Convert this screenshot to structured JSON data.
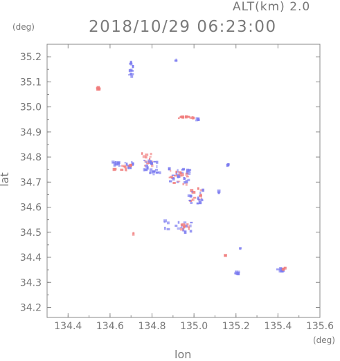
{
  "header": {
    "altitude": "ALT(km) 2.0",
    "timestamp": "2018/10/29 06:23:00"
  },
  "chart_data": {
    "type": "scatter",
    "xlabel": "lon",
    "ylabel": "lat",
    "x_unit": "(deg)",
    "y_unit": "(deg)",
    "xlim": [
      134.3,
      135.6
    ],
    "ylim": [
      34.16,
      35.25
    ],
    "xticks": [
      134.4,
      134.6,
      134.8,
      135.0,
      135.2,
      135.4,
      135.6
    ],
    "xtick_labels": [
      "134.4",
      "134.6",
      "134.8",
      "135.0",
      "135.2",
      "135.4",
      "135.6"
    ],
    "yticks": [
      34.2,
      34.3,
      34.4,
      34.5,
      34.6,
      34.7,
      34.8,
      34.9,
      35.0,
      35.1,
      35.2
    ],
    "ytick_labels": [
      "34.2",
      "34.3",
      "34.4",
      "34.5",
      "34.6",
      "34.7",
      "34.8",
      "34.9",
      "35.0",
      "35.1",
      "35.2"
    ],
    "colors": {
      "positive": "#f07b7b",
      "negative": "#7b7bf0",
      "axis": "#888888"
    },
    "clusters": [
      {
        "lon": 134.545,
        "lat": 35.075,
        "sign": "positive",
        "spread_lon": 0.006,
        "spread_lat": 0.006,
        "n": 6
      },
      {
        "lon": 134.7,
        "lat": 35.15,
        "sign": "negative",
        "spread_lon": 0.015,
        "spread_lat": 0.03,
        "n": 14
      },
      {
        "lon": 134.915,
        "lat": 35.185,
        "sign": "negative",
        "spread_lon": 0.002,
        "spread_lat": 0.003,
        "n": 2
      },
      {
        "lon": 134.96,
        "lat": 34.958,
        "sign": "positive",
        "spread_lon": 0.04,
        "spread_lat": 0.004,
        "n": 14
      },
      {
        "lon": 135.02,
        "lat": 34.95,
        "sign": "negative",
        "spread_lon": 0.015,
        "spread_lat": 0.006,
        "n": 5
      },
      {
        "lon": 134.66,
        "lat": 34.765,
        "sign": "negative",
        "spread_lon": 0.05,
        "spread_lat": 0.015,
        "n": 20
      },
      {
        "lon": 134.66,
        "lat": 34.76,
        "sign": "positive",
        "spread_lon": 0.04,
        "spread_lat": 0.012,
        "n": 12
      },
      {
        "lon": 134.78,
        "lat": 34.79,
        "sign": "positive",
        "spread_lon": 0.03,
        "spread_lat": 0.03,
        "n": 14
      },
      {
        "lon": 134.8,
        "lat": 34.76,
        "sign": "negative",
        "spread_lon": 0.04,
        "spread_lat": 0.03,
        "n": 24
      },
      {
        "lon": 134.93,
        "lat": 34.725,
        "sign": "negative",
        "spread_lon": 0.05,
        "spread_lat": 0.03,
        "n": 28
      },
      {
        "lon": 134.93,
        "lat": 34.72,
        "sign": "positive",
        "spread_lon": 0.045,
        "spread_lat": 0.03,
        "n": 18
      },
      {
        "lon": 135.01,
        "lat": 34.65,
        "sign": "positive",
        "spread_lon": 0.03,
        "spread_lat": 0.03,
        "n": 14
      },
      {
        "lon": 135.01,
        "lat": 34.64,
        "sign": "negative",
        "spread_lon": 0.035,
        "spread_lat": 0.03,
        "n": 14
      },
      {
        "lon": 134.95,
        "lat": 34.52,
        "sign": "negative",
        "spread_lon": 0.04,
        "spread_lat": 0.02,
        "n": 12
      },
      {
        "lon": 134.95,
        "lat": 34.52,
        "sign": "positive",
        "spread_lon": 0.03,
        "spread_lat": 0.015,
        "n": 10
      },
      {
        "lon": 134.87,
        "lat": 34.54,
        "sign": "negative",
        "spread_lon": 0.01,
        "spread_lat": 0.03,
        "n": 5
      },
      {
        "lon": 134.71,
        "lat": 34.495,
        "sign": "positive",
        "spread_lon": 0.003,
        "spread_lat": 0.003,
        "n": 2
      },
      {
        "lon": 135.12,
        "lat": 34.66,
        "sign": "negative",
        "spread_lon": 0.003,
        "spread_lat": 0.004,
        "n": 2
      },
      {
        "lon": 135.165,
        "lat": 34.765,
        "sign": "negative",
        "spread_lon": 0.006,
        "spread_lat": 0.01,
        "n": 4
      },
      {
        "lon": 135.22,
        "lat": 34.435,
        "sign": "negative",
        "spread_lon": 0.003,
        "spread_lat": 0.002,
        "n": 2
      },
      {
        "lon": 135.15,
        "lat": 34.408,
        "sign": "positive",
        "spread_lon": 0.003,
        "spread_lat": 0.002,
        "n": 2
      },
      {
        "lon": 135.205,
        "lat": 34.338,
        "sign": "negative",
        "spread_lon": 0.008,
        "spread_lat": 0.004,
        "n": 8
      },
      {
        "lon": 135.415,
        "lat": 34.35,
        "sign": "negative",
        "spread_lon": 0.015,
        "spread_lat": 0.006,
        "n": 12
      },
      {
        "lon": 135.43,
        "lat": 34.355,
        "sign": "positive",
        "spread_lon": 0.006,
        "spread_lat": 0.004,
        "n": 4
      }
    ]
  }
}
